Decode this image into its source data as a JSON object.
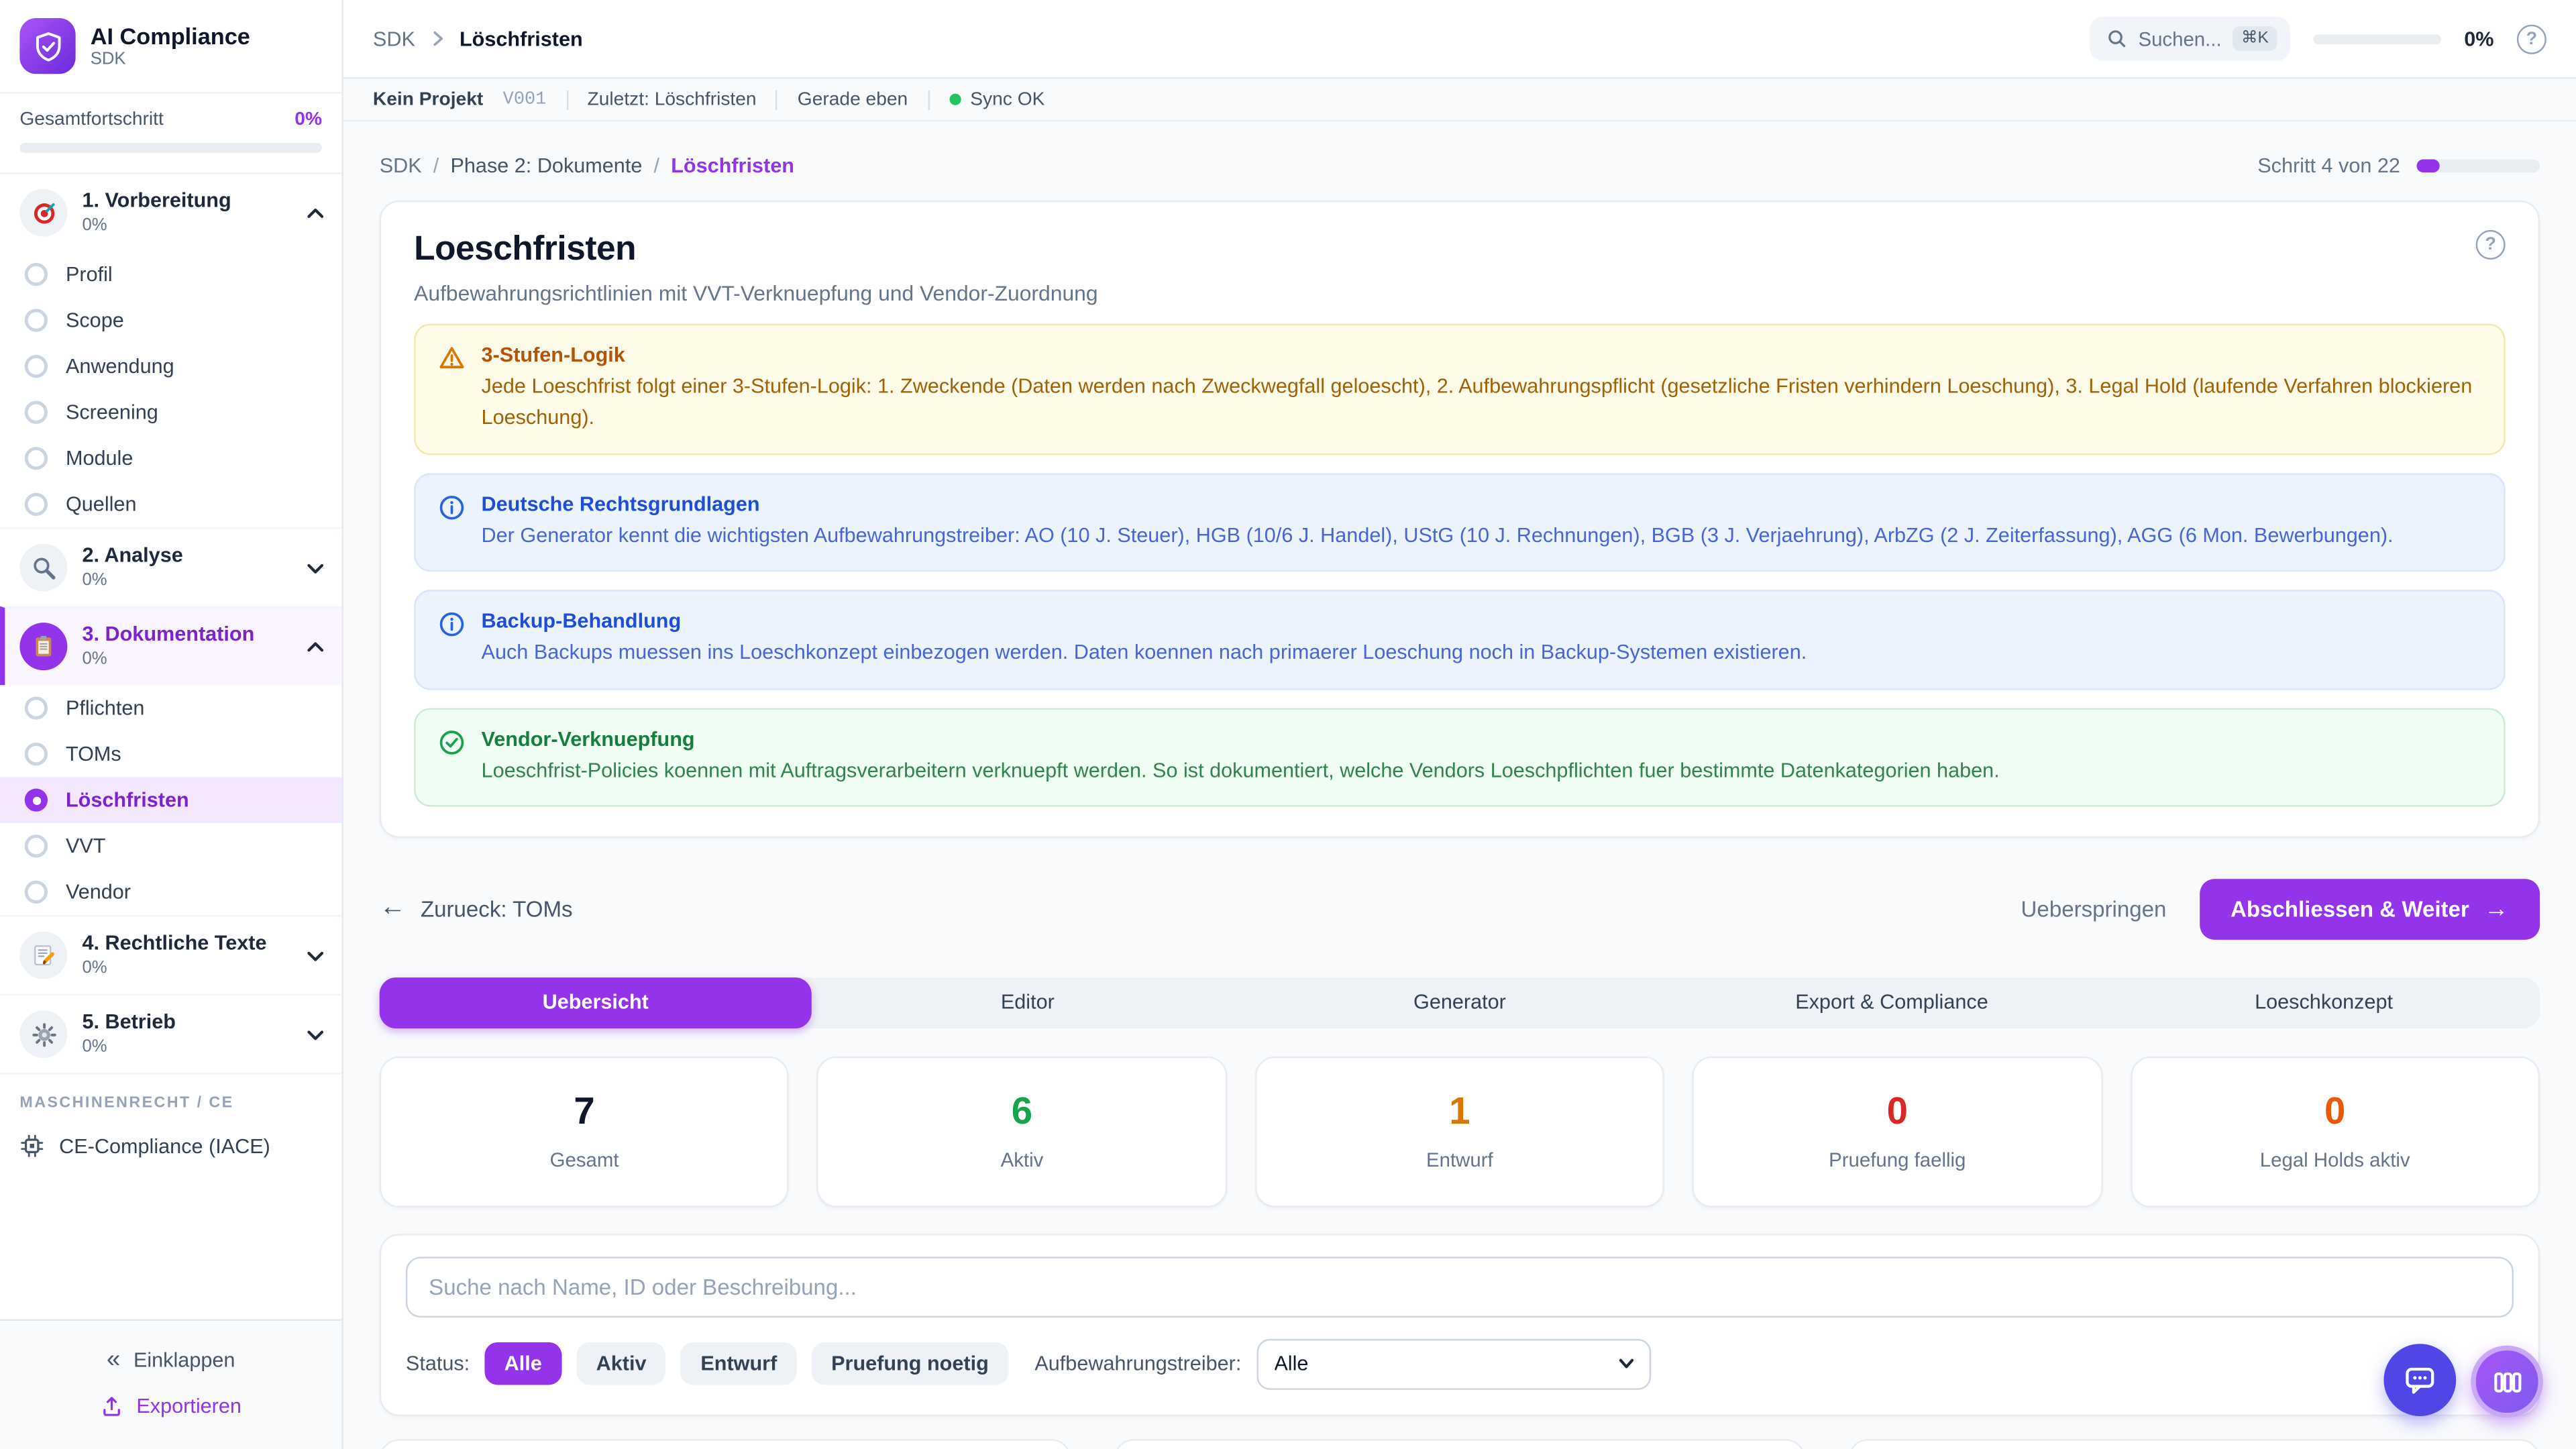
{
  "app": {
    "name": "AI Compliance",
    "subtitle": "SDK"
  },
  "sidebar": {
    "progress_label": "Gesamtfortschritt",
    "progress_value": "0%",
    "progress_pct": 0,
    "sections": [
      {
        "label": "1. Vorbereitung",
        "percent": "0%",
        "items": [
          "Profil",
          "Scope",
          "Anwendung",
          "Screening",
          "Module",
          "Quellen"
        ]
      },
      {
        "label": "2. Analyse",
        "percent": "0%"
      },
      {
        "label": "3. Dokumentation",
        "percent": "0%",
        "items": [
          "Pflichten",
          "TOMs",
          "Löschfristen",
          "VVT",
          "Vendor"
        ]
      },
      {
        "label": "4. Rechtliche Texte",
        "percent": "0%"
      },
      {
        "label": "5. Betrieb",
        "percent": "0%"
      }
    ],
    "group_label": "MASCHINENRECHT / CE",
    "ce_item": "CE-Compliance (IACE)",
    "collapse_label": "Einklappen",
    "export_label": "Exportieren"
  },
  "topbar": {
    "crumb_root": "SDK",
    "crumb_current": "Löschfristen",
    "search_placeholder": "Suchen...",
    "search_shortcut": "⌘K",
    "progress_value": "0%",
    "progress_pct": 0
  },
  "statusbar": {
    "project": "Kein Projekt",
    "version": "V001",
    "last": "Zuletzt: Löschfristen",
    "time": "Gerade eben",
    "sync": "Sync OK"
  },
  "page": {
    "breadcrumb": [
      "SDK",
      "Phase 2: Dokumente",
      "Löschfristen"
    ],
    "step_label": "Schritt 4 von 22",
    "step_progress_pct": 18,
    "title": "Loeschfristen",
    "subtitle": "Aufbewahrungsrichtlinien mit VVT-Verknuepfung und Vendor-Zuordnung",
    "alerts": [
      {
        "type": "warning",
        "title": "3-Stufen-Logik",
        "body": "Jede Loeschfrist folgt einer 3-Stufen-Logik: 1. Zweckende (Daten werden nach Zweckwegfall geloescht), 2. Aufbewahrungspflicht (gesetzliche Fristen verhindern Loeschung), 3. Legal Hold (laufende Verfahren blockieren Loeschung)."
      },
      {
        "type": "info",
        "title": "Deutsche Rechtsgrundlagen",
        "body": "Der Generator kennt die wichtigsten Aufbewahrungstreiber: AO (10 J. Steuer), HGB (10/6 J. Handel), UStG (10 J. Rechnungen), BGB (3 J. Verjaehrung), ArbZG (2 J. Zeiterfassung), AGG (6 Mon. Bewerbungen)."
      },
      {
        "type": "info",
        "title": "Backup-Behandlung",
        "body": "Auch Backups muessen ins Loeschkonzept einbezogen werden. Daten koennen nach primaerer Loeschung noch in Backup-Systemen existieren."
      },
      {
        "type": "success",
        "title": "Vendor-Verknuepfung",
        "body": "Loeschfrist-Policies koennen mit Auftragsverarbeitern verknuepft werden. So ist dokumentiert, welche Vendors Loeschpflichten fuer bestimmte Datenkategorien haben."
      }
    ],
    "back_label": "Zurueck: TOMs",
    "skip_label": "Ueberspringen",
    "next_label": "Abschliessen & Weiter",
    "tabs": [
      "Uebersicht",
      "Editor",
      "Generator",
      "Export & Compliance",
      "Loeschkonzept"
    ],
    "active_tab": "Uebersicht",
    "stats": [
      {
        "value": "7",
        "label": "Gesamt",
        "color": "#0f172a"
      },
      {
        "value": "6",
        "label": "Aktiv",
        "color": "#16a34a"
      },
      {
        "value": "1",
        "label": "Entwurf",
        "color": "#d97706"
      },
      {
        "value": "0",
        "label": "Pruefung faellig",
        "color": "#dc2626"
      },
      {
        "value": "0",
        "label": "Legal Holds aktiv",
        "color": "#ea580c"
      }
    ],
    "search_placeholder": "Suche nach Name, ID oder Beschreibung...",
    "filters": {
      "status_label": "Status:",
      "status_options": [
        "Alle",
        "Aktiv",
        "Entwurf",
        "Pruefung noetig"
      ],
      "active_status": "Alle",
      "driver_label": "Aufbewahrungstreiber:",
      "driver_value": "Alle"
    }
  },
  "colors": {
    "accent": "#9333ea",
    "sync_ok": "#22c55e",
    "warning": "#d97706",
    "info": "#2563eb",
    "success": "#16a34a"
  }
}
